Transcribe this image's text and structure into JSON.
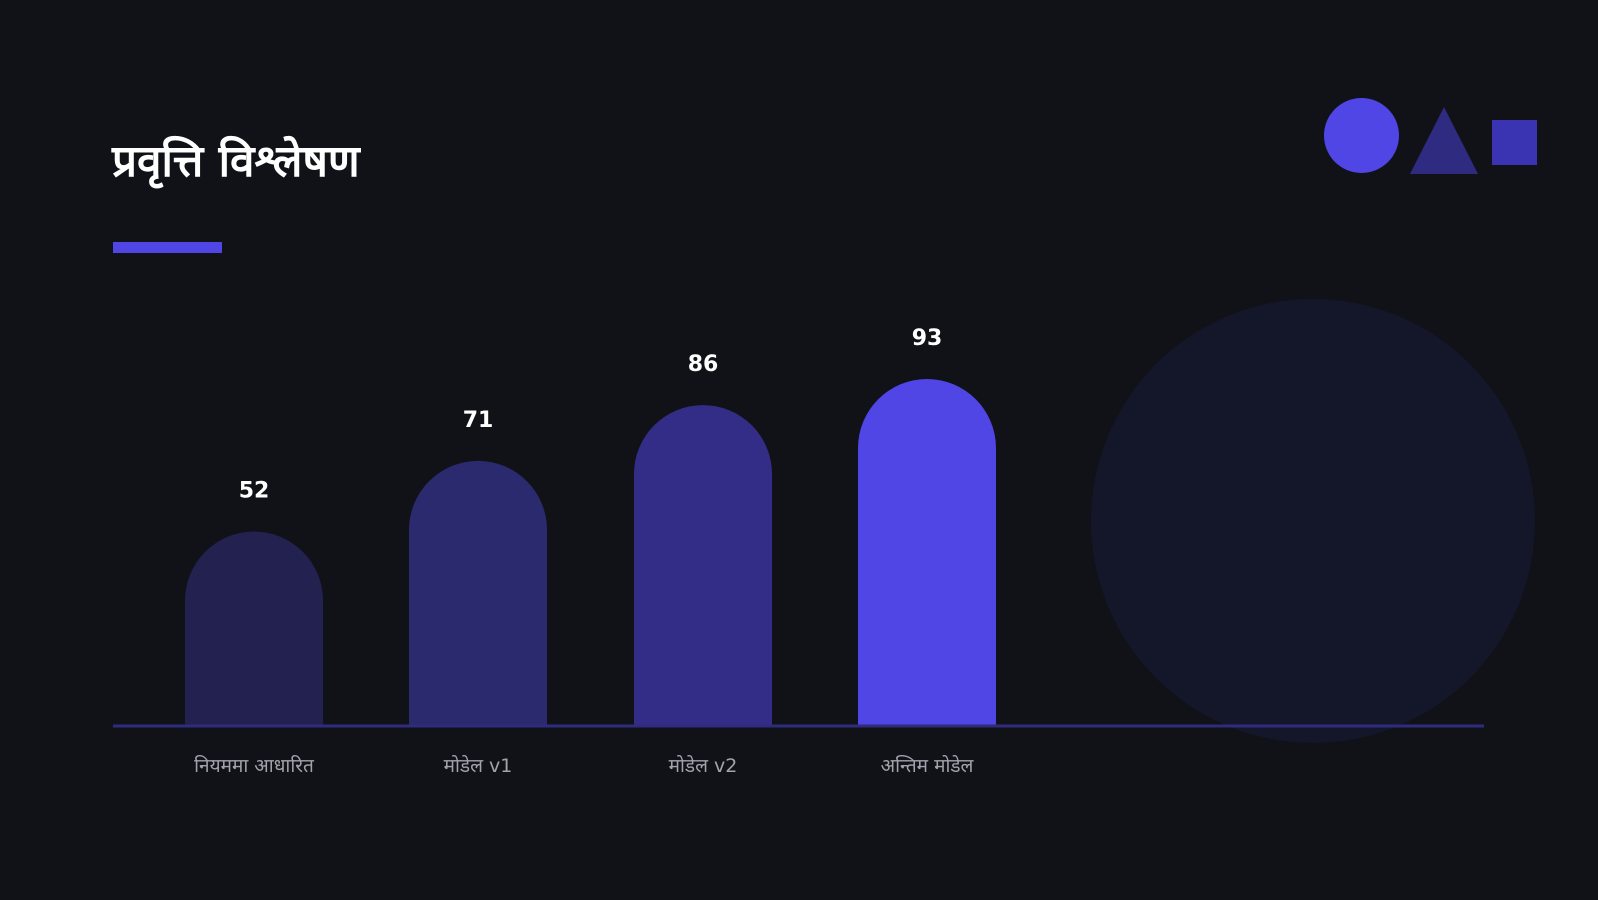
{
  "title": "प्रवृत्ति विश्लेषण",
  "colors": {
    "background": "#111217",
    "accent": "#4f46e5",
    "bars": [
      "#23214f",
      "#2c2a6e",
      "#342d87",
      "#4f46e5"
    ],
    "axis": "#2f2b7d",
    "value_label": "#ffffff",
    "category_label": "#a3a3ad",
    "deco_circle": "#4f46e5",
    "deco_triangle": "#2f2b80",
    "deco_square": "#3a33b2",
    "deco_big_circle": "#14162a"
  },
  "chart_data": {
    "type": "bar",
    "categories": [
      "नियममा आधारित",
      "मोडेल v1",
      "मोडेल v2",
      "अन्तिम मोडेल"
    ],
    "values": [
      52,
      71,
      86,
      93
    ],
    "ylim": [
      0,
      100
    ],
    "grid": false,
    "bar_shape": "rounded-top",
    "highlight_index": 3
  }
}
